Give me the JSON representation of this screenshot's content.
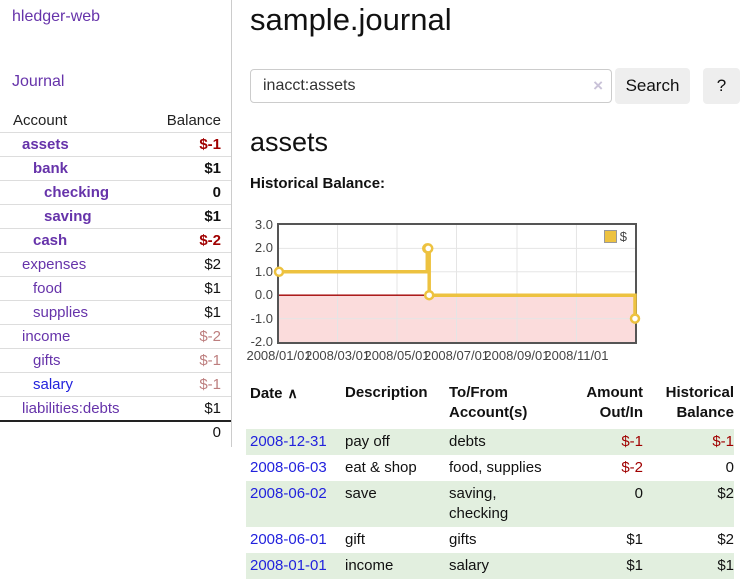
{
  "app": {
    "title": "hledger-web"
  },
  "sidebar": {
    "journal_label": "Journal",
    "accounts": {
      "header_account": "Account",
      "header_balance": "Balance",
      "rows": [
        {
          "account": "assets",
          "balance": "$-1",
          "level": 1,
          "bold": true,
          "neg": "strong",
          "blue": false
        },
        {
          "account": "bank",
          "balance": "$1",
          "level": 2,
          "bold": true,
          "neg": null,
          "blue": false
        },
        {
          "account": "checking",
          "balance": "0",
          "level": 3,
          "bold": true,
          "neg": null,
          "blue": false
        },
        {
          "account": "saving",
          "balance": "$1",
          "level": 3,
          "bold": true,
          "neg": null,
          "blue": false
        },
        {
          "account": "cash",
          "balance": "$-2",
          "level": 2,
          "bold": true,
          "neg": "strong",
          "blue": false
        },
        {
          "account": "expenses",
          "balance": "$2",
          "level": 1,
          "bold": false,
          "neg": null,
          "blue": false
        },
        {
          "account": "food",
          "balance": "$1",
          "level": 2,
          "bold": false,
          "neg": null,
          "blue": false
        },
        {
          "account": "supplies",
          "balance": "$1",
          "level": 2,
          "bold": false,
          "neg": null,
          "blue": false
        },
        {
          "account": "income",
          "balance": "$-2",
          "level": 1,
          "bold": false,
          "neg": "muted",
          "blue": false
        },
        {
          "account": "gifts",
          "balance": "$-1",
          "level": 2,
          "bold": false,
          "neg": "muted",
          "blue": false
        },
        {
          "account": "salary",
          "balance": "$-1",
          "level": 2,
          "bold": false,
          "neg": "muted",
          "blue": true
        },
        {
          "account": "liabilities:debts",
          "balance": "$1",
          "level": 1,
          "bold": false,
          "neg": null,
          "blue": false
        }
      ],
      "total": "0"
    }
  },
  "main": {
    "title": "sample.journal",
    "search": {
      "value": "inacct:assets",
      "clear_icon": "×",
      "search_label": "Search",
      "help_label": "?"
    },
    "account_heading": "assets",
    "section_label": "Historical Balance:"
  },
  "chart_data": {
    "type": "line",
    "step": true,
    "title": "Historical Balance:",
    "x_range": [
      "2008-01-01",
      "2008-12-31"
    ],
    "ylim": [
      -2,
      3
    ],
    "y_ticks": [
      "3.0",
      "2.0",
      "1.0",
      "0.0",
      "-1.0",
      "-2.0"
    ],
    "x_ticks": [
      "2008/01/01",
      "2008/03/01",
      "2008/05/01",
      "2008/07/01",
      "2008/09/01",
      "2008/11/01"
    ],
    "legend": {
      "label": "$",
      "position": "top-right"
    },
    "series": [
      {
        "name": "$",
        "color": "#edc240",
        "points": [
          {
            "x": "2008-01-01",
            "y": 1
          },
          {
            "x": "2008-06-01",
            "y": 2
          },
          {
            "x": "2008-06-02",
            "y": 2
          },
          {
            "x": "2008-06-03",
            "y": 0
          },
          {
            "x": "2008-12-31",
            "y": -1
          }
        ]
      }
    ],
    "grid": true,
    "gridline_color": "#e5e5e5",
    "zero_line_color": "#a00000",
    "negative_region_color": "#fbdcdc"
  },
  "transactions": {
    "headers": [
      "Date",
      "Description",
      "To/From Account(s)",
      "Amount Out/In",
      "Historical Balance"
    ],
    "sort_icon": "∧",
    "rows": [
      {
        "date": "2008-12-31",
        "description": "pay off",
        "accounts": "debts",
        "amount": "$-1",
        "balance": "$-1",
        "amount_negative": true,
        "balance_negative": true,
        "shaded": true
      },
      {
        "date": "2008-06-03",
        "description": "eat & shop",
        "accounts": "food, supplies",
        "amount": "$-2",
        "balance": "0",
        "amount_negative": true,
        "balance_negative": false,
        "shaded": false
      },
      {
        "date": "2008-06-02",
        "description": "save",
        "accounts": "saving, checking",
        "amount": "0",
        "balance": "$2",
        "amount_negative": false,
        "balance_negative": false,
        "shaded": true
      },
      {
        "date": "2008-06-01",
        "description": "gift",
        "accounts": "gifts",
        "amount": "$1",
        "balance": "$2",
        "amount_negative": false,
        "balance_negative": false,
        "shaded": false
      },
      {
        "date": "2008-01-01",
        "description": "income",
        "accounts": "salary",
        "amount": "$1",
        "balance": "$1",
        "amount_negative": false,
        "balance_negative": false,
        "shaded": true
      }
    ]
  },
  "colors": {
    "link_purple": "#6633aa",
    "link_blue": "#2222dd",
    "negative_strong": "#a00000",
    "negative_muted": "#bd7e7e",
    "row_shade_green": "#e2efdf",
    "chart_line": "#edc240"
  }
}
